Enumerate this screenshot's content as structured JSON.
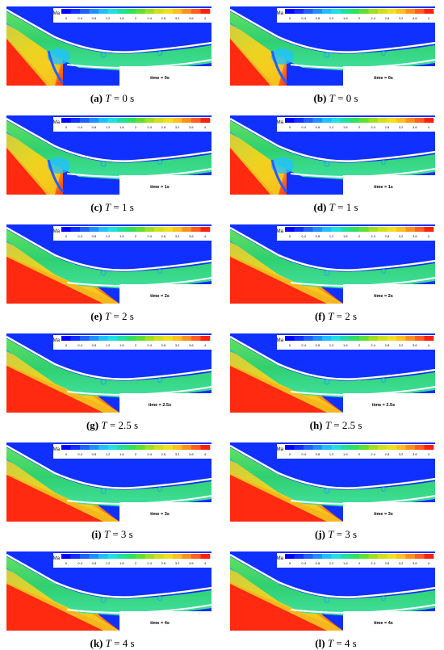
{
  "colorbar": {
    "label": "Ma",
    "ticks": [
      "0",
      "0.4",
      "0.8",
      "1.2",
      "1.6",
      "2",
      "2.4",
      "2.8",
      "3.2",
      "3.6",
      "4"
    ],
    "colors": [
      "#0000ff",
      "#1030ff",
      "#2060ff",
      "#2090ff",
      "#20c0ff",
      "#20e0e0",
      "#20e0a0",
      "#30e060",
      "#60e030",
      "#a0e020",
      "#d0e020",
      "#f0e020",
      "#ffc020",
      "#ff9020",
      "#ff6020",
      "#ff2010"
    ]
  },
  "panels": [
    {
      "letter": "(a)",
      "var": "T",
      "value": "= 0 s",
      "time_label": "time = 0s",
      "variant": "shock0"
    },
    {
      "letter": "(b)",
      "var": "T",
      "value": "= 0 s",
      "time_label": "time = 0s",
      "variant": "shock0"
    },
    {
      "letter": "(c)",
      "var": "T",
      "value": "= 1 s",
      "time_label": "time = 1s",
      "variant": "shock1"
    },
    {
      "letter": "(d)",
      "var": "T",
      "value": "= 1 s",
      "time_label": "time = 1s",
      "variant": "shock1"
    },
    {
      "letter": "(e)",
      "var": "T",
      "value": "= 2 s",
      "time_label": "time = 2s",
      "variant": "steady"
    },
    {
      "letter": "(f)",
      "var": "T",
      "value": "= 2 s",
      "time_label": "time = 2s",
      "variant": "steady"
    },
    {
      "letter": "(g)",
      "var": "T",
      "value": "= 2.5 s",
      "time_label": "time = 2.5s",
      "variant": "steady"
    },
    {
      "letter": "(h)",
      "var": "T",
      "value": "= 2.5 s",
      "time_label": "time = 2.5s",
      "variant": "steady"
    },
    {
      "letter": "(i)",
      "var": "T",
      "value": "= 3 s",
      "time_label": "time = 3s",
      "variant": "steady"
    },
    {
      "letter": "(j)",
      "var": "T",
      "value": "= 3 s",
      "time_label": "time = 3s",
      "variant": "steady"
    },
    {
      "letter": "(k)",
      "var": "T",
      "value": "= 4 s",
      "time_label": "time = 4s",
      "variant": "steady"
    },
    {
      "letter": "(l)",
      "var": "T",
      "value": "= 4 s",
      "time_label": "time = 4s",
      "variant": "steady"
    }
  ]
}
